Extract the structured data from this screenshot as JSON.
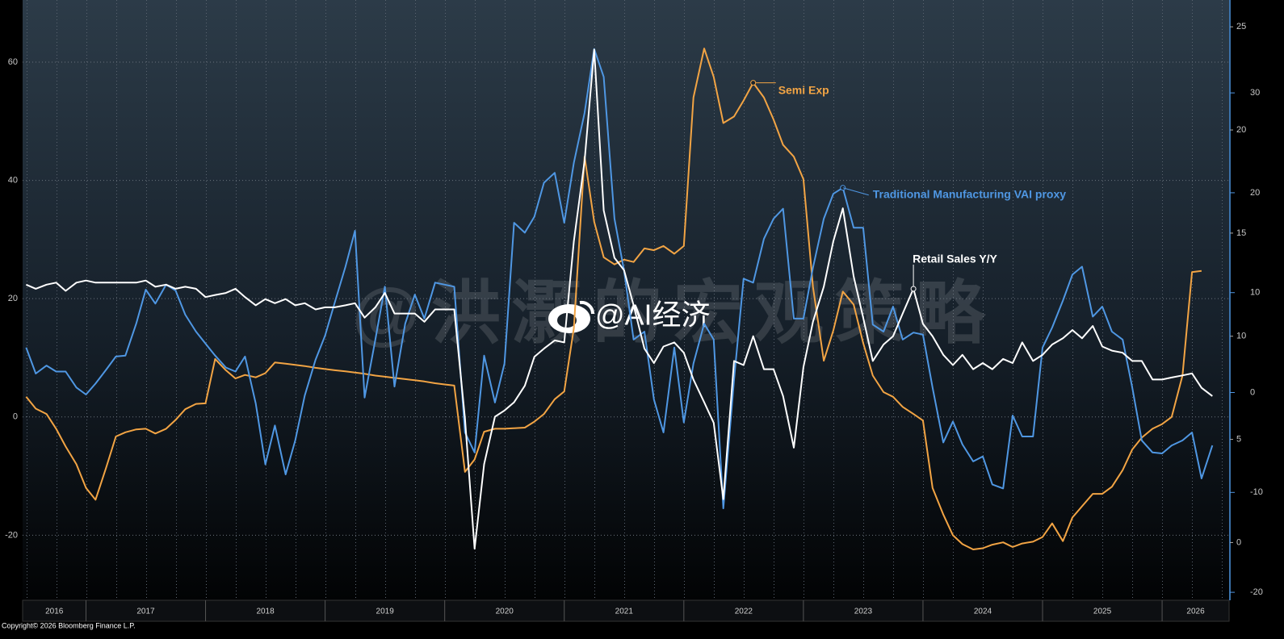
{
  "chart_data": {
    "type": "line",
    "x": [
      2016.5,
      2016.58,
      2016.67,
      2016.75,
      2016.83,
      2016.92,
      2017.0,
      2017.08,
      2017.17,
      2017.25,
      2017.33,
      2017.42,
      2017.5,
      2017.58,
      2017.67,
      2017.75,
      2017.83,
      2017.92,
      2018.0,
      2018.08,
      2018.17,
      2018.25,
      2018.33,
      2018.42,
      2018.5,
      2018.58,
      2018.67,
      2018.75,
      2018.83,
      2018.92,
      2019.0,
      2019.08,
      2019.17,
      2019.25,
      2019.33,
      2019.42,
      2019.5,
      2019.58,
      2019.67,
      2019.75,
      2019.83,
      2019.92,
      2020.0,
      2020.08,
      2020.17,
      2020.25,
      2020.33,
      2020.42,
      2020.5,
      2020.58,
      2020.67,
      2020.75,
      2020.83,
      2020.92,
      2021.0,
      2021.08,
      2021.17,
      2021.25,
      2021.33,
      2021.42,
      2021.5,
      2021.58,
      2021.67,
      2021.75,
      2021.83,
      2021.92,
      2022.0,
      2022.08,
      2022.17,
      2022.25,
      2022.33,
      2022.42,
      2022.5,
      2022.58,
      2022.67,
      2022.75,
      2022.83,
      2022.92,
      2023.0,
      2023.08,
      2023.17,
      2023.25,
      2023.33,
      2023.42,
      2023.5,
      2023.58,
      2023.67,
      2023.75,
      2023.83,
      2023.92,
      2024.0,
      2024.08,
      2024.17,
      2024.25,
      2024.33,
      2024.42,
      2024.5,
      2024.58,
      2024.67,
      2024.75,
      2024.83,
      2024.92,
      2025.0,
      2025.08,
      2025.17,
      2025.25,
      2025.33,
      2025.42,
      2025.5,
      2025.58,
      2025.67,
      2025.75,
      2025.83,
      2025.92,
      2026.0,
      2026.08,
      2026.17,
      2026.25,
      2026.33,
      2026.42
    ],
    "xlim": [
      2016.47,
      2026.56
    ],
    "xticks": [
      2017,
      2018,
      2019,
      2020,
      2021,
      2022,
      2023,
      2024,
      2025,
      2026
    ],
    "year_labels": [
      "2016",
      "2017",
      "2018",
      "2019",
      "2020",
      "2021",
      "2022",
      "2023",
      "2024",
      "2025",
      "2026"
    ],
    "ylim": [
      -31,
      70.5
    ],
    "yticks": [
      -20,
      0,
      20,
      40,
      60
    ],
    "y2lim": [
      -20.8,
      39.3
    ],
    "y2ticks": [
      -20,
      -10,
      0,
      10,
      20,
      30
    ],
    "y3lim": [
      -2.8,
      26.3
    ],
    "y3ticks": [
      0,
      5,
      10,
      15,
      20,
      25
    ],
    "grid": true,
    "series": [
      {
        "name": "Semi Exp",
        "color": "#f2a444",
        "values": [
          3.4,
          1.4,
          0.5,
          -2,
          -5,
          -8,
          -12,
          -14,
          -8.5,
          -3.3,
          -2.6,
          -2.1,
          -2,
          -2.8,
          -2,
          -0.5,
          1.3,
          2.2,
          2.3,
          9.8,
          7.9,
          6.5,
          7.1,
          6.7,
          7.4,
          9.2,
          9.0,
          8.8,
          8.6,
          8.3,
          8.1,
          7.9,
          7.7,
          7.5,
          7.3,
          7.0,
          6.8,
          6.6,
          6.4,
          6.2,
          6.0,
          5.7,
          5.5,
          5.3,
          -9.3,
          -7.2,
          -2.5,
          -2,
          -2,
          -1.9,
          -1.8,
          -0.8,
          0.5,
          3,
          4.3,
          15,
          44,
          33,
          27,
          25.8,
          26.6,
          26.2,
          28.5,
          28.2,
          28.9,
          27.6,
          28.9,
          54,
          62.3,
          57.5,
          49.7,
          50.8,
          53.5,
          56.5,
          54,
          50.3,
          46,
          44,
          40.2,
          22,
          9.5,
          14.6,
          21.2,
          19,
          12.5,
          7,
          4.2,
          3.4,
          1.7,
          0.5,
          -0.6,
          -12,
          -16.5,
          -20,
          -21.5,
          -22.4,
          -22.2,
          -21.6,
          -21.2,
          -22,
          -21.4,
          -21.1,
          -20.3,
          -18,
          -21,
          -17,
          -15.1,
          -13,
          -13,
          -11.8,
          -9,
          -5.5,
          -3.5,
          -2,
          -1.2,
          0,
          7,
          24.5,
          24.7,
          null
        ]
      },
      {
        "name": "Traditional Manufacturing VAI proxy",
        "color": "#4f97e3",
        "axis": "y2",
        "values": [
          4.5,
          1.9,
          2.7,
          2.1,
          2.1,
          0.5,
          -0.2,
          0.9,
          2.3,
          3.6,
          3.7,
          6.9,
          10.3,
          8.9,
          10.8,
          10.2,
          7.8,
          6.1,
          4.9,
          3.7,
          2.5,
          2.1,
          3.6,
          -1.1,
          -7.2,
          -3.3,
          -8.2,
          -4.8,
          -0.3,
          3.3,
          5.7,
          9,
          12.6,
          16.2,
          -0.5,
          5.3,
          10.6,
          0.6,
          6.9,
          9.8,
          7.4,
          11,
          10.8,
          10.6,
          -4,
          -6,
          3.7,
          -1,
          2.9,
          17,
          16,
          17.6,
          21,
          22,
          17,
          23,
          28,
          34.4,
          31.6,
          17.4,
          12.2,
          5.3,
          6.1,
          -0.7,
          -4,
          4.5,
          -3,
          2.9,
          6.9,
          5.3,
          -11.6,
          1.3,
          11.4,
          11,
          15.4,
          17.4,
          18.4,
          7.4,
          7.4,
          12.5,
          17.4,
          19.9,
          20.5,
          16.5,
          16.5,
          6.8,
          6.1,
          8.6,
          5.3,
          6,
          5.8,
          0.5,
          -5,
          -2.9,
          -5.2,
          -6.9,
          -6.4,
          -9.2,
          -9.6,
          -2.3,
          -4.4,
          -4.4,
          4.5,
          6.5,
          9.2,
          11.8,
          12.6,
          7.6,
          8.6,
          6.1,
          5.3,
          0.5,
          -4.8,
          -6,
          -6.1,
          -5.3,
          -4.8,
          -4,
          -8.6,
          -5.3
        ]
      },
      {
        "name": "Retail Sales Y/Y",
        "color": "#ffffff",
        "axis": "y3",
        "values": [
          12.5,
          12.3,
          12.5,
          12.6,
          12.2,
          12.6,
          12.7,
          12.6,
          12.6,
          12.6,
          12.6,
          12.6,
          12.7,
          12.4,
          12.5,
          12.3,
          12.4,
          12.3,
          11.9,
          12,
          12.1,
          12.3,
          11.9,
          11.5,
          11.8,
          11.6,
          11.8,
          11.5,
          11.6,
          11.3,
          11.4,
          11.4,
          11.5,
          11.6,
          10.9,
          11.4,
          12.1,
          11.1,
          11.1,
          11.1,
          10.7,
          11.3,
          11.3,
          11.3,
          6,
          -0.3,
          3.8,
          6.1,
          6.4,
          6.8,
          7.6,
          9,
          9.4,
          9.8,
          9.7,
          14.6,
          18.5,
          23.9,
          16.1,
          13.8,
          13.2,
          11.5,
          9.4,
          8.7,
          9.5,
          9.7,
          9.2,
          7.9,
          6.8,
          5.8,
          2.1,
          8.8,
          8.6,
          10,
          8.4,
          8.4,
          7.1,
          4.6,
          8.5,
          10.7,
          12.4,
          14.6,
          16.2,
          12.9,
          10.9,
          8.8,
          9.6,
          10,
          11.1,
          12.3,
          10.6,
          10,
          9.1,
          8.6,
          9.1,
          8.4,
          8.7,
          8.4,
          8.9,
          8.7,
          9.7,
          8.8,
          9.1,
          9.6,
          9.9,
          10.3,
          9.9,
          10.5,
          9.5,
          9.3,
          9.2,
          8.8,
          8.8,
          7.9,
          7.9,
          8,
          8.1,
          8.2,
          7.5,
          7.1
        ]
      }
    ]
  },
  "watermark": {
    "text": "@洪灏的宏观策略",
    "handle": "@AI经济"
  },
  "footer": "Copyright© 2026 Bloomberg Finance L.P."
}
